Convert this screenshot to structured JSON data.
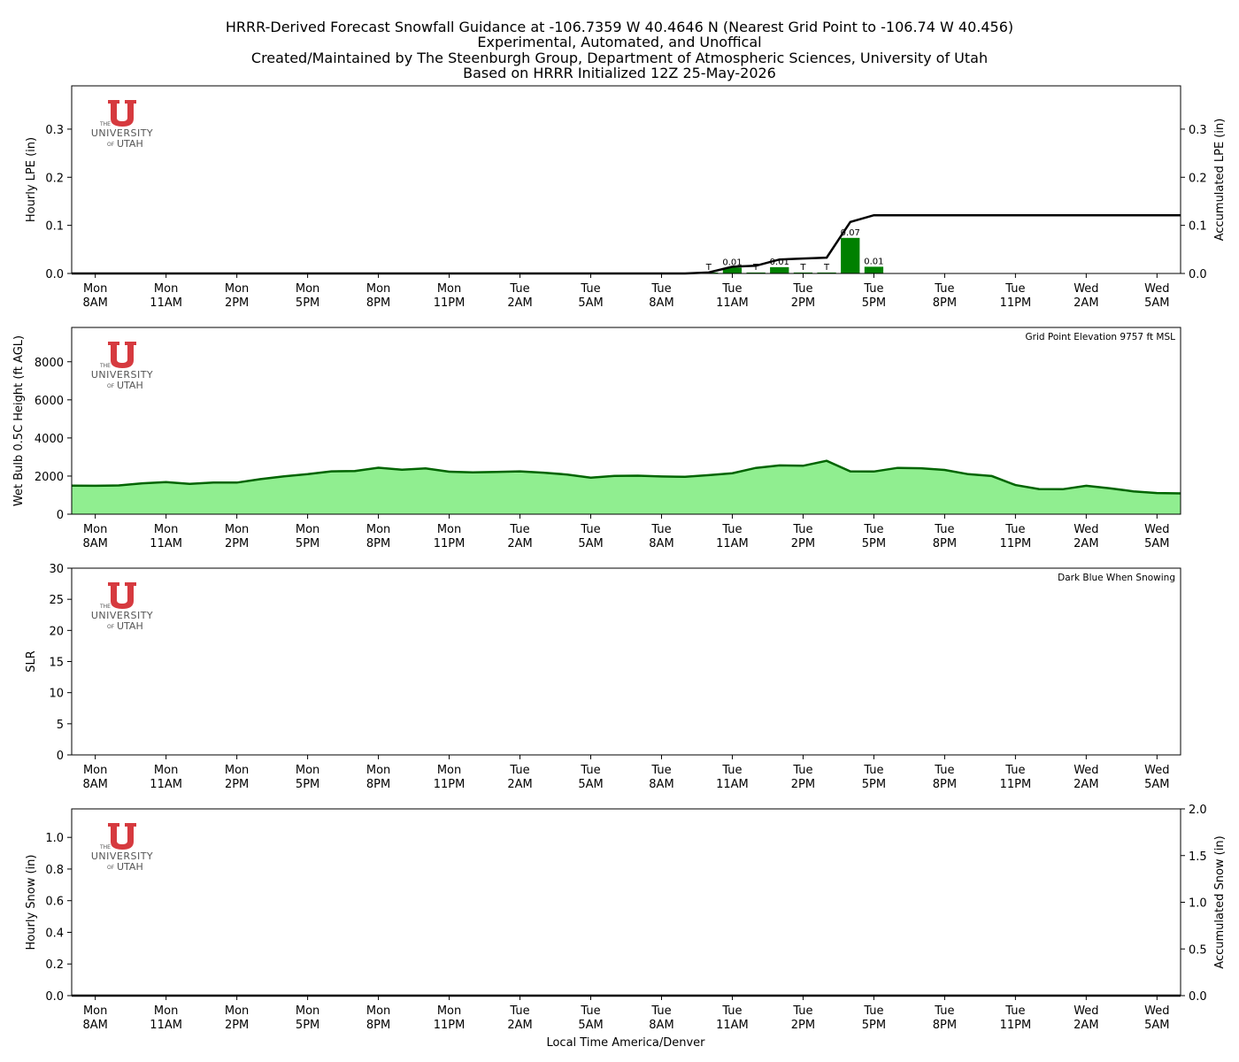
{
  "title_lines": [
    "HRRR-Derived Forecast Snowfall Guidance at -106.7359 W 40.4646 N (Nearest Grid Point to -106.74 W 40.456)",
    "Experimental, Automated, and Unoffical",
    "Created/Maintained by The Steenburgh Group, Department of Atmospheric Sciences, University of Utah",
    "Based on HRRR Initialized 12Z 25-May-2026"
  ],
  "logo": {
    "the": "THE",
    "university": "UNIVERSITY",
    "of": "OF",
    "utah": "UTAH",
    "color": "#d63a3f"
  },
  "xlabel": "Local Time America/Denver",
  "x_ticks": [
    {
      "hour": 1,
      "day": "Mon",
      "time": "8AM"
    },
    {
      "hour": 4,
      "day": "Mon",
      "time": "11AM"
    },
    {
      "hour": 7,
      "day": "Mon",
      "time": "2PM"
    },
    {
      "hour": 10,
      "day": "Mon",
      "time": "5PM"
    },
    {
      "hour": 13,
      "day": "Mon",
      "time": "8PM"
    },
    {
      "hour": 16,
      "day": "Mon",
      "time": "11PM"
    },
    {
      "hour": 19,
      "day": "Tue",
      "time": "2AM"
    },
    {
      "hour": 22,
      "day": "Tue",
      "time": "5AM"
    },
    {
      "hour": 25,
      "day": "Tue",
      "time": "8AM"
    },
    {
      "hour": 28,
      "day": "Tue",
      "time": "11AM"
    },
    {
      "hour": 31,
      "day": "Tue",
      "time": "2PM"
    },
    {
      "hour": 34,
      "day": "Tue",
      "time": "5PM"
    },
    {
      "hour": 37,
      "day": "Tue",
      "time": "8PM"
    },
    {
      "hour": 40,
      "day": "Tue",
      "time": "11PM"
    },
    {
      "hour": 43,
      "day": "Wed",
      "time": "2AM"
    },
    {
      "hour": 46,
      "day": "Wed",
      "time": "5AM"
    }
  ],
  "chart_data": [
    {
      "type": "bar",
      "ylabel": "Hourly LPE (in)",
      "y2label": "Accumulated LPE (in)",
      "ylim": [
        0,
        0.39
      ],
      "y_ticks": [
        0.0,
        0.1,
        0.2,
        0.3
      ],
      "y_ticks_right": [
        0.0,
        0.1,
        0.2,
        0.3
      ],
      "bar_color": "#008000",
      "line_color": "#000000",
      "bars": [
        {
          "hour": 27,
          "value": 0.002,
          "label": "T"
        },
        {
          "hour": 28,
          "value": 0.012,
          "label": "0.01"
        },
        {
          "hour": 29,
          "value": 0.002,
          "label": "T"
        },
        {
          "hour": 30,
          "value": 0.013,
          "label": "0.01"
        },
        {
          "hour": 31,
          "value": 0.002,
          "label": "T"
        },
        {
          "hour": 32,
          "value": 0.002,
          "label": "T"
        },
        {
          "hour": 33,
          "value": 0.074,
          "label": "0.07"
        },
        {
          "hour": 34,
          "value": 0.014,
          "label": "0.01"
        }
      ],
      "accumulated": {
        "hours": [
          0,
          26,
          27,
          28,
          29,
          30,
          31,
          32,
          33,
          34,
          35,
          36,
          40,
          44,
          47
        ],
        "values": [
          0.0,
          0.0,
          0.002,
          0.014,
          0.016,
          0.029,
          0.031,
          0.033,
          0.107,
          0.121,
          0.121,
          0.121,
          0.121,
          0.121,
          0.121
        ]
      }
    },
    {
      "type": "area",
      "ylabel": "Wet Bulb 0.5C Height (ft AGL)",
      "annotation": "Grid Point Elevation 9757 ft MSL",
      "ylim": [
        0,
        9800
      ],
      "y_ticks": [
        0,
        2000,
        4000,
        6000,
        8000
      ],
      "fill_color": "#90ee90",
      "line_color": "#006400",
      "hours": [
        0,
        1,
        2,
        3,
        4,
        5,
        6,
        7,
        8,
        9,
        10,
        11,
        12,
        13,
        14,
        15,
        16,
        17,
        18,
        19,
        20,
        21,
        22,
        23,
        24,
        25,
        26,
        27,
        28,
        29,
        30,
        31,
        32,
        33,
        34,
        35,
        36,
        37,
        38,
        39,
        40,
        41,
        42,
        43,
        44,
        45,
        46,
        47
      ],
      "values": [
        1500,
        1490,
        1510,
        1620,
        1680,
        1590,
        1660,
        1660,
        1840,
        1990,
        2100,
        2250,
        2260,
        2440,
        2330,
        2400,
        2230,
        2190,
        2220,
        2250,
        2180,
        2080,
        1920,
        2010,
        2020,
        1980,
        1960,
        2050,
        2150,
        2430,
        2560,
        2540,
        2800,
        2250,
        2240,
        2430,
        2410,
        2320,
        2100,
        2000,
        1530,
        1320,
        1310,
        1490,
        1360,
        1200,
        1110,
        1090
      ]
    },
    {
      "type": "line",
      "ylabel": "SLR",
      "annotation": "Dark Blue When Snowing",
      "ylim": [
        0,
        30
      ],
      "y_ticks": [
        0,
        5,
        10,
        15,
        20,
        25,
        30
      ],
      "series": []
    },
    {
      "type": "bar",
      "ylabel": "Hourly Snow (in)",
      "y2label": "Accumulated Snow (in)",
      "ylim": [
        0,
        1.18
      ],
      "y_ticks": [
        0.0,
        0.2,
        0.4,
        0.6,
        0.8,
        1.0
      ],
      "y2lim": [
        0,
        2.0
      ],
      "y_ticks_right": [
        0.0,
        0.5,
        1.0,
        1.5,
        2.0
      ],
      "bars": [],
      "accumulated": {
        "hours": [
          0,
          47
        ],
        "values": [
          0,
          0
        ]
      }
    }
  ]
}
